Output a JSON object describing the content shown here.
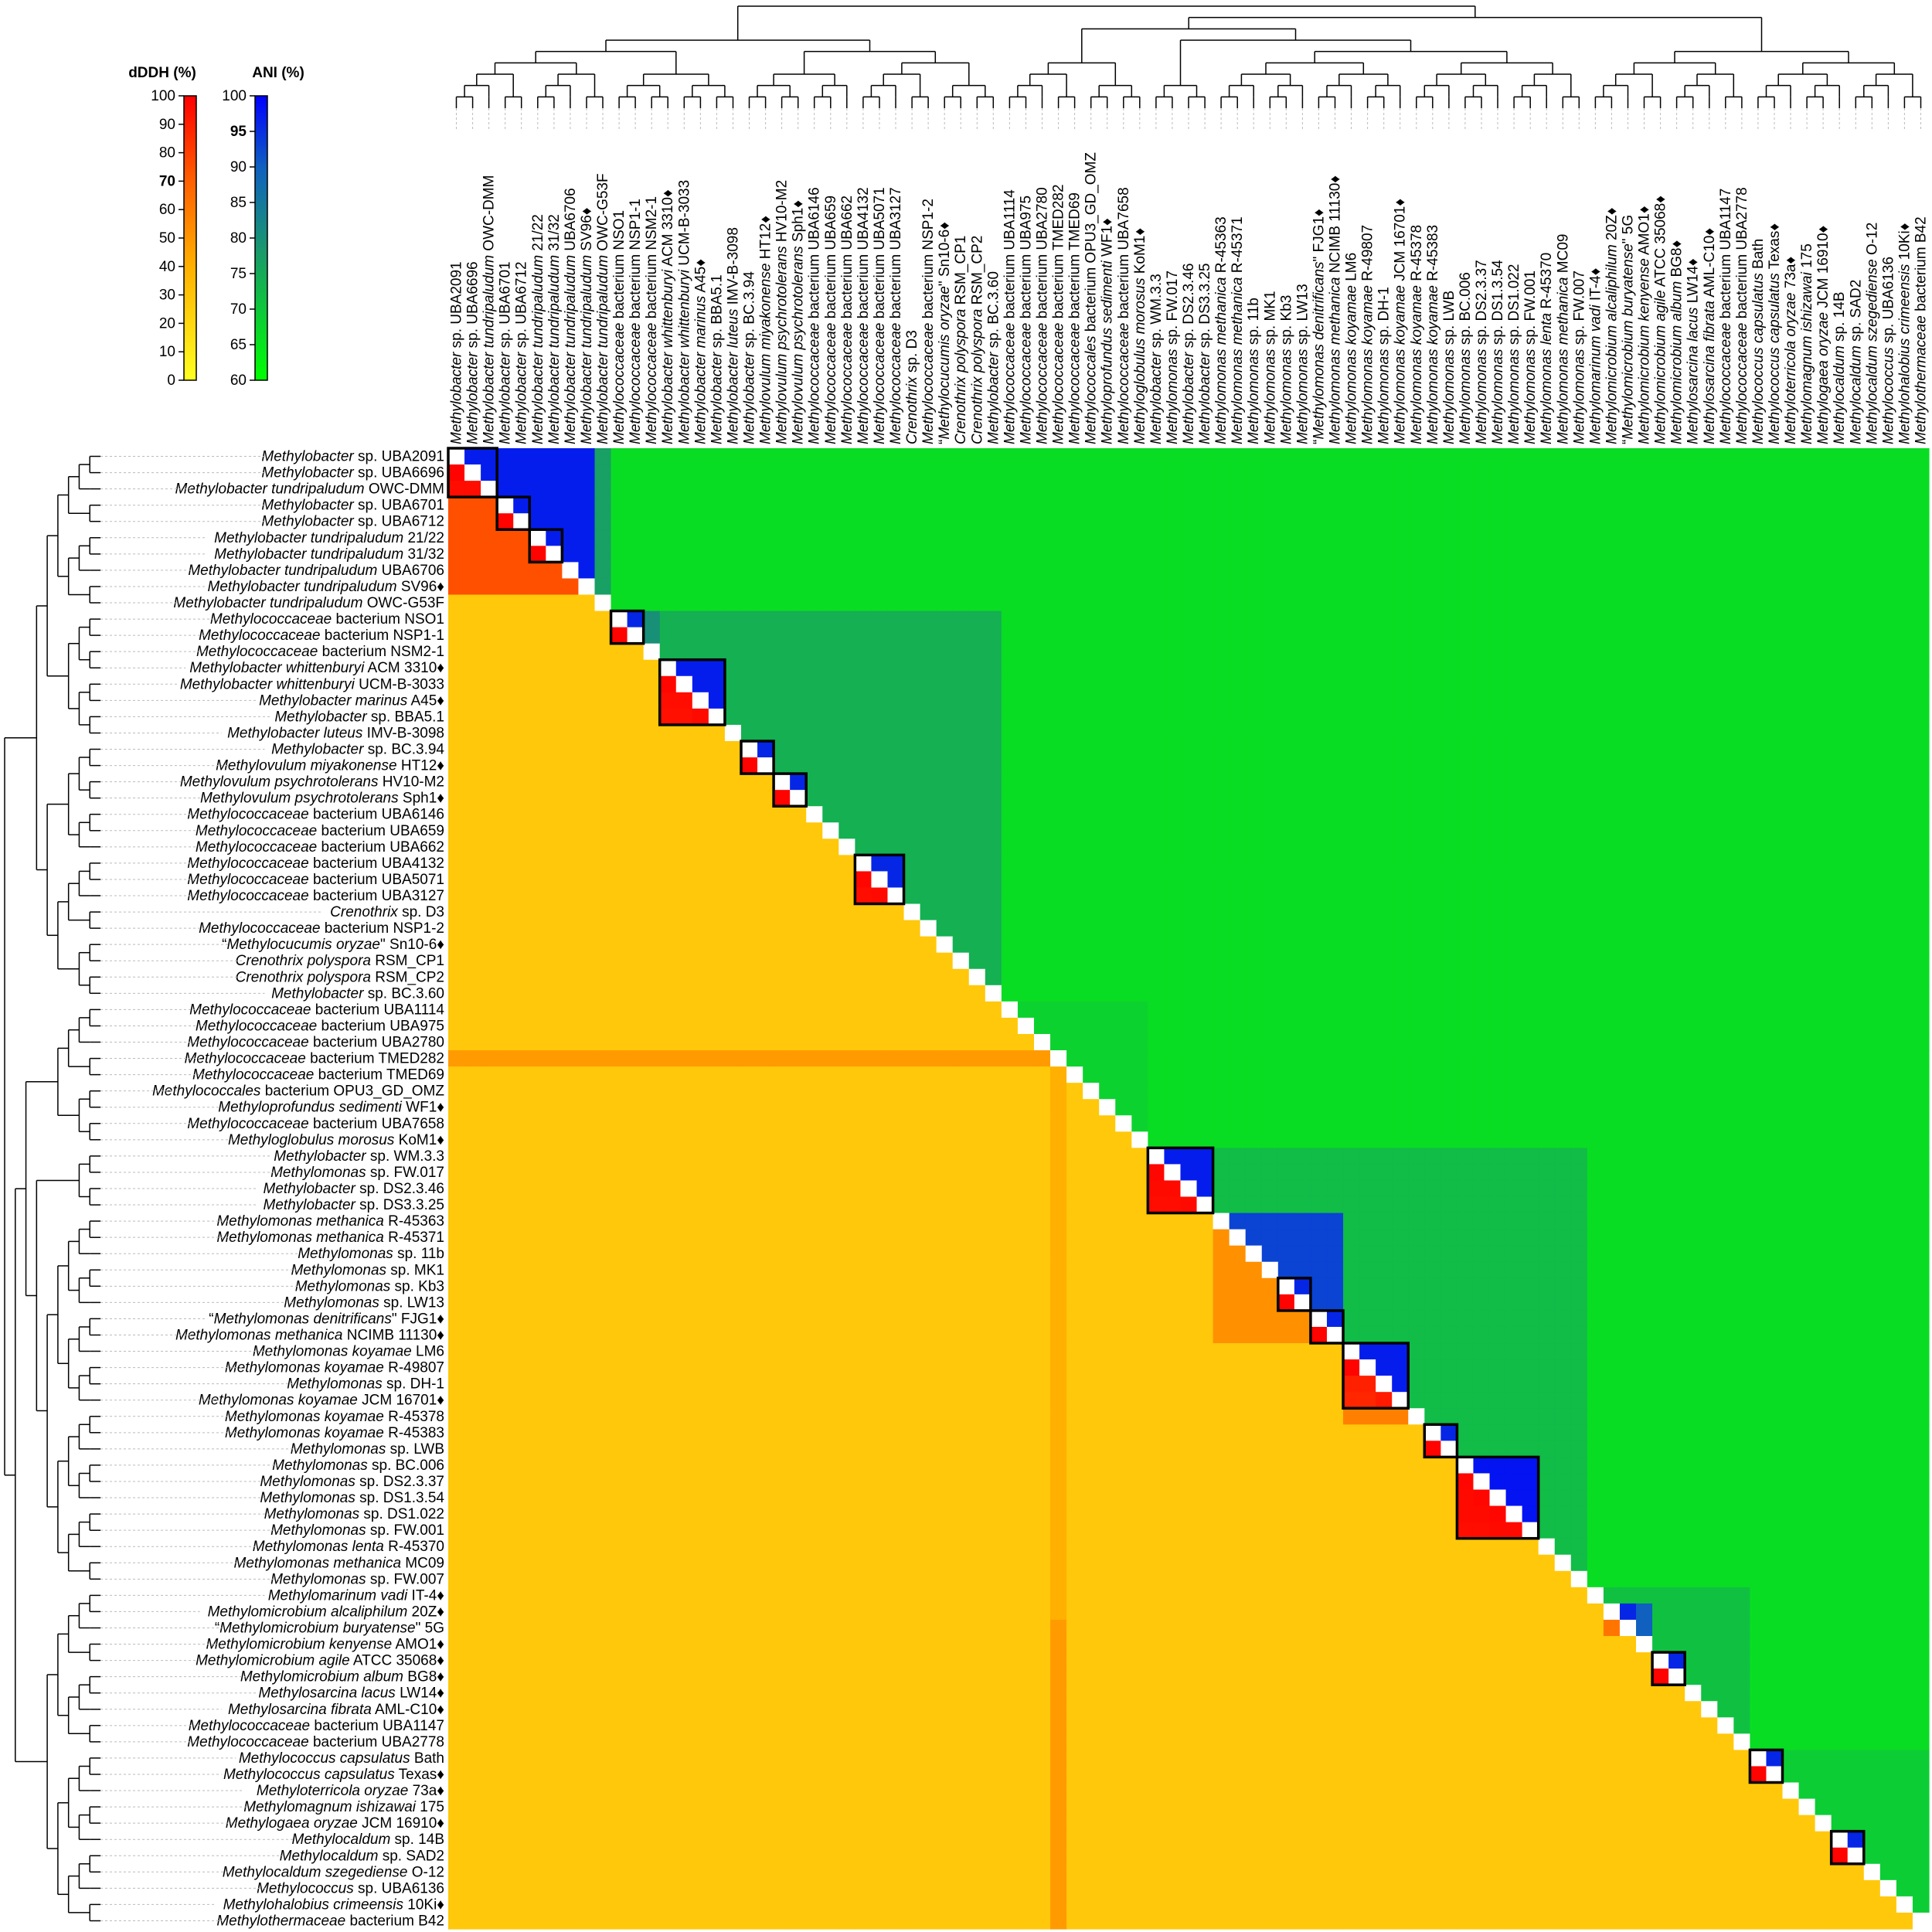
{
  "chart_data": {
    "type": "heatmap",
    "description_lower_triangle": "dDDH (%)",
    "description_upper_triangle": "ANI (%)",
    "colorbars": [
      {
        "title": "dDDH (%)",
        "min": 0,
        "max": 100,
        "ticks": [
          "100",
          "90",
          "80",
          "70",
          "60",
          "50",
          "40",
          "30",
          "20",
          "10",
          "0"
        ],
        "bold_tick": "70",
        "colors": [
          "#ffff20",
          "#ffb000",
          "#ff6000",
          "#ff0000"
        ]
      },
      {
        "title": "ANI (%)",
        "min": 60,
        "max": 100,
        "ticks": [
          "100",
          "95",
          "90",
          "85",
          "80",
          "75",
          "70",
          "65",
          "60"
        ],
        "bold_tick": "95",
        "colors": [
          "#00ff00",
          "#1a9a6a",
          "#1060c0",
          "#0000ff"
        ]
      }
    ],
    "taxa": [
      {
        "genus": "Methylobacter",
        "rest": " sp. UBA2091"
      },
      {
        "genus": "Methylobacter",
        "rest": " sp. UBA6696"
      },
      {
        "genus": "Methylobacter tundripaludum",
        "rest": " OWC-DMM"
      },
      {
        "genus": "Methylobacter",
        "rest": " sp. UBA6701"
      },
      {
        "genus": "Methylobacter",
        "rest": " sp. UBA6712"
      },
      {
        "genus": "Methylobacter tundripaludum",
        "rest": " 21/22"
      },
      {
        "genus": "Methylobacter tundripaludum",
        "rest": " 31/32"
      },
      {
        "genus": "Methylobacter tundripaludum",
        "rest": " UBA6706"
      },
      {
        "genus": "Methylobacter tundripaludum",
        "rest": " SV96♦"
      },
      {
        "genus": "Methylobacter tundripaludum",
        "rest": " OWC-G53F"
      },
      {
        "genus": "Methylococcaceae",
        "rest": " bacterium NSO1"
      },
      {
        "genus": "Methylococcaceae",
        "rest": " bacterium NSP1-1"
      },
      {
        "genus": "Methylococcaceae",
        "rest": " bacterium NSM2-1"
      },
      {
        "genus": "Methylobacter whittenburyi",
        "rest": " ACM 3310♦"
      },
      {
        "genus": "Methylobacter whittenburyi",
        "rest": " UCM-B-3033"
      },
      {
        "genus": "Methylobacter marinus",
        "rest": " A45♦"
      },
      {
        "genus": "Methylobacter",
        "rest": " sp. BBA5.1"
      },
      {
        "genus": "Methylobacter luteus",
        "rest": " IMV-B-3098"
      },
      {
        "genus": "Methylobacter",
        "rest": " sp. BC.3.94"
      },
      {
        "genus": "Methylovulum miyakonense",
        "rest": " HT12♦"
      },
      {
        "genus": "Methylovulum psychrotolerans",
        "rest": " HV10-M2"
      },
      {
        "genus": "Methylovulum psychrotolerans",
        "rest": " Sph1♦"
      },
      {
        "genus": "Methylococcaceae",
        "rest": " bacterium UBA6146"
      },
      {
        "genus": "Methylococcaceae",
        "rest": " bacterium UBA659"
      },
      {
        "genus": "Methylococcaceae",
        "rest": " bacterium UBA662"
      },
      {
        "genus": "Methylococcaceae",
        "rest": " bacterium UBA4132"
      },
      {
        "genus": "Methylococcaceae",
        "rest": " bacterium UBA5071"
      },
      {
        "genus": "Methylococcaceae",
        "rest": " bacterium UBA3127"
      },
      {
        "genus": "Crenothrix",
        "rest": " sp. D3"
      },
      {
        "genus": "Methylococcaceae",
        "rest": " bacterium NSP1-2"
      },
      {
        "genus": "Methylocucumis oryzae",
        "rest": "\" Sn10-6♦",
        "pre": "“"
      },
      {
        "genus": "Crenothrix polyspora",
        "rest": " RSM_CP1"
      },
      {
        "genus": "Crenothrix polyspora",
        "rest": " RSM_CP2"
      },
      {
        "genus": "Methylobacter",
        "rest": " sp. BC.3.60"
      },
      {
        "genus": "Methylococcaceae",
        "rest": " bacterium UBA1114"
      },
      {
        "genus": "Methylococcaceae",
        "rest": " bacterium UBA975"
      },
      {
        "genus": "Methylococcaceae",
        "rest": " bacterium UBA2780"
      },
      {
        "genus": "Methylococcaceae",
        "rest": " bacterium TMED282"
      },
      {
        "genus": "Methylococcaceae",
        "rest": " bacterium TMED69"
      },
      {
        "genus": "Methylococcales",
        "rest": " bacterium OPU3_GD_OMZ"
      },
      {
        "genus": "Methyloprofundus sedimenti",
        "rest": " WF1♦"
      },
      {
        "genus": "Methylococcaceae",
        "rest": " bacterium UBA7658"
      },
      {
        "genus": "Methyloglobulus morosus",
        "rest": " KoM1♦"
      },
      {
        "genus": "Methylobacter",
        "rest": " sp. WM.3.3"
      },
      {
        "genus": "Methylomonas",
        "rest": " sp. FW.017"
      },
      {
        "genus": "Methylobacter",
        "rest": " sp. DS2.3.46"
      },
      {
        "genus": "Methylobacter",
        "rest": " sp. DS3.3.25"
      },
      {
        "genus": "Methylomonas methanica",
        "rest": " R-45363"
      },
      {
        "genus": "Methylomonas methanica",
        "rest": " R-45371"
      },
      {
        "genus": "Methylomonas",
        "rest": " sp. 11b"
      },
      {
        "genus": "Methylomonas",
        "rest": " sp. MK1"
      },
      {
        "genus": "Methylomonas",
        "rest": " sp. Kb3"
      },
      {
        "genus": "Methylomonas",
        "rest": " sp. LW13"
      },
      {
        "genus": "Methylomonas denitrificans",
        "rest": "\" FJG1♦",
        "pre": "“"
      },
      {
        "genus": "Methylomonas methanica",
        "rest": " NCIMB 11130♦"
      },
      {
        "genus": "Methylomonas koyamae",
        "rest": " LM6"
      },
      {
        "genus": "Methylomonas koyamae",
        "rest": " R-49807"
      },
      {
        "genus": "Methylomonas",
        "rest": " sp. DH-1"
      },
      {
        "genus": "Methylomonas koyamae",
        "rest": " JCM 16701♦"
      },
      {
        "genus": "Methylomonas koyamae",
        "rest": " R-45378"
      },
      {
        "genus": "Methylomonas koyamae",
        "rest": " R-45383"
      },
      {
        "genus": "Methylomonas",
        "rest": " sp. LWB"
      },
      {
        "genus": "Methylomonas",
        "rest": " sp. BC.006"
      },
      {
        "genus": "Methylomonas",
        "rest": " sp. DS2.3.37"
      },
      {
        "genus": "Methylomonas",
        "rest": " sp. DS1.3.54"
      },
      {
        "genus": "Methylomonas",
        "rest": " sp. DS1.022"
      },
      {
        "genus": "Methylomonas",
        "rest": " sp. FW.001"
      },
      {
        "genus": "Methylomonas lenta",
        "rest": " R-45370"
      },
      {
        "genus": "Methylomonas methanica",
        "rest": " MC09"
      },
      {
        "genus": "Methylomonas",
        "rest": " sp. FW.007"
      },
      {
        "genus": "Methylomarinum vadi",
        "rest": " IT-4♦"
      },
      {
        "genus": "Methylomicrobium alcaliphilum",
        "rest": " 20Z♦"
      },
      {
        "genus": "Methylomicrobium buryatense",
        "rest": "\" 5G",
        "pre": "“"
      },
      {
        "genus": "Methylomicrobium kenyense",
        "rest": " AMO1♦"
      },
      {
        "genus": "Methylomicrobium agile",
        "rest": " ATCC 35068♦"
      },
      {
        "genus": "Methylomicrobium album",
        "rest": " BG8♦"
      },
      {
        "genus": "Methylosarcina lacus",
        "rest": " LW14♦"
      },
      {
        "genus": "Methylosarcina fibrata",
        "rest": " AML-C10♦"
      },
      {
        "genus": "Methylococcaceae",
        "rest": " bacterium UBA1147"
      },
      {
        "genus": "Methylococcaceae",
        "rest": " bacterium UBA2778"
      },
      {
        "genus": "Methylococcus capsulatus",
        "rest": " Bath"
      },
      {
        "genus": "Methylococcus capsulatus",
        "rest": " Texas♦"
      },
      {
        "genus": "Methyloterricola oryzae",
        "rest": " 73a♦"
      },
      {
        "genus": "Methylomagnum ishizawai",
        "rest": " 175"
      },
      {
        "genus": "Methylogaea oryzae",
        "rest": " JCM 16910♦"
      },
      {
        "genus": "Methylocaldum",
        "rest": " sp. 14B"
      },
      {
        "genus": "Methylocaldum",
        "rest": " sp. SAD2"
      },
      {
        "genus": "Methylocaldum szegediense",
        "rest": " O-12"
      },
      {
        "genus": "Methylococcus",
        "rest": " sp. UBA6136"
      },
      {
        "genus": "Methylohalobius crimeensis",
        "rest": " 10Ki♦"
      },
      {
        "genus": "Methylothermaceae",
        "rest": " bacterium B42"
      }
    ],
    "species_clusters": [
      {
        "start": 0,
        "end": 2
      },
      {
        "start": 3,
        "end": 4
      },
      {
        "start": 5,
        "end": 6
      },
      {
        "start": 10,
        "end": 11
      },
      {
        "start": 13,
        "end": 16
      },
      {
        "start": 18,
        "end": 19
      },
      {
        "start": 20,
        "end": 21
      },
      {
        "start": 25,
        "end": 27
      },
      {
        "start": 43,
        "end": 46
      },
      {
        "start": 51,
        "end": 52
      },
      {
        "start": 53,
        "end": 54
      },
      {
        "start": 55,
        "end": 58
      },
      {
        "start": 60,
        "end": 61
      },
      {
        "start": 62,
        "end": 66
      },
      {
        "start": 74,
        "end": 75
      },
      {
        "start": 80,
        "end": 81
      },
      {
        "start": 85,
        "end": 86
      }
    ],
    "ani_blocks": [
      {
        "from": 0,
        "to": 8,
        "ani": 97
      },
      {
        "from": 9,
        "to": 9,
        "ani": 82
      },
      {
        "from": 10,
        "to": 12,
        "ani": 80
      },
      {
        "from": 13,
        "to": 16,
        "ani": 97
      },
      {
        "from": 18,
        "to": 19,
        "ani": 96
      },
      {
        "from": 20,
        "to": 21,
        "ani": 96
      },
      {
        "from": 25,
        "to": 27,
        "ani": 96
      },
      {
        "from": 43,
        "to": 46,
        "ani": 97
      },
      {
        "from": 47,
        "to": 54,
        "ani": 93
      },
      {
        "from": 55,
        "to": 58,
        "ani": 97
      },
      {
        "from": 59,
        "to": 59,
        "ani": 95
      },
      {
        "from": 60,
        "to": 61,
        "ani": 96
      },
      {
        "from": 62,
        "to": 66,
        "ani": 98
      },
      {
        "from": 71,
        "to": 73,
        "ani": 90
      },
      {
        "from": 74,
        "to": 75,
        "ani": 95
      },
      {
        "from": 80,
        "to": 81,
        "ani": 96
      },
      {
        "from": 85,
        "to": 86,
        "ani": 95
      }
    ],
    "ani_groups": [
      {
        "from": 0,
        "to": 9,
        "ani": 77
      },
      {
        "from": 10,
        "to": 33,
        "ani": 74
      },
      {
        "from": 34,
        "to": 42,
        "ani": 68
      },
      {
        "from": 43,
        "to": 69,
        "ani": 72
      },
      {
        "from": 70,
        "to": 79,
        "ani": 71
      },
      {
        "from": 80,
        "to": 90,
        "ani": 69
      }
    ],
    "ani_background": 66,
    "dddh_blocks": [
      {
        "from": 0,
        "to": 8,
        "dddh": 75
      },
      {
        "from": 47,
        "to": 54,
        "dddh": 52
      },
      {
        "from": 55,
        "to": 59,
        "dddh": 58
      }
    ],
    "dddh_pairs": [
      {
        "a": 0,
        "b": 1,
        "dddh": 99
      },
      {
        "a": 0,
        "b": 2,
        "dddh": 96
      },
      {
        "a": 1,
        "b": 2,
        "dddh": 96
      },
      {
        "a": 3,
        "b": 4,
        "dddh": 99
      },
      {
        "a": 5,
        "b": 6,
        "dddh": 99
      },
      {
        "a": 10,
        "b": 11,
        "dddh": 99
      },
      {
        "a": 13,
        "b": 14,
        "dddh": 98
      },
      {
        "a": 13,
        "b": 15,
        "dddh": 96
      },
      {
        "a": 13,
        "b": 16,
        "dddh": 95
      },
      {
        "a": 14,
        "b": 15,
        "dddh": 96
      },
      {
        "a": 14,
        "b": 16,
        "dddh": 95
      },
      {
        "a": 15,
        "b": 16,
        "dddh": 97
      },
      {
        "a": 18,
        "b": 19,
        "dddh": 99
      },
      {
        "a": 20,
        "b": 21,
        "dddh": 99
      },
      {
        "a": 25,
        "b": 26,
        "dddh": 98
      },
      {
        "a": 25,
        "b": 27,
        "dddh": 96
      },
      {
        "a": 26,
        "b": 27,
        "dddh": 97
      },
      {
        "a": 43,
        "b": 44,
        "dddh": 98
      },
      {
        "a": 43,
        "b": 45,
        "dddh": 97
      },
      {
        "a": 43,
        "b": 46,
        "dddh": 96
      },
      {
        "a": 44,
        "b": 45,
        "dddh": 97
      },
      {
        "a": 44,
        "b": 46,
        "dddh": 96
      },
      {
        "a": 45,
        "b": 46,
        "dddh": 97
      },
      {
        "a": 51,
        "b": 52,
        "dddh": 99
      },
      {
        "a": 53,
        "b": 54,
        "dddh": 99
      },
      {
        "a": 55,
        "b": 56,
        "dddh": 99
      },
      {
        "a": 55,
        "b": 57,
        "dddh": 90
      },
      {
        "a": 55,
        "b": 58,
        "dddh": 88
      },
      {
        "a": 56,
        "b": 57,
        "dddh": 90
      },
      {
        "a": 56,
        "b": 58,
        "dddh": 88
      },
      {
        "a": 57,
        "b": 58,
        "dddh": 92
      },
      {
        "a": 60,
        "b": 61,
        "dddh": 99
      },
      {
        "a": 62,
        "b": 63,
        "dddh": 98
      },
      {
        "a": 62,
        "b": 64,
        "dddh": 97
      },
      {
        "a": 62,
        "b": 65,
        "dddh": 97
      },
      {
        "a": 62,
        "b": 66,
        "dddh": 96
      },
      {
        "a": 63,
        "b": 64,
        "dddh": 98
      },
      {
        "a": 63,
        "b": 65,
        "dddh": 97
      },
      {
        "a": 63,
        "b": 66,
        "dddh": 96
      },
      {
        "a": 64,
        "b": 65,
        "dddh": 98
      },
      {
        "a": 64,
        "b": 66,
        "dddh": 97
      },
      {
        "a": 65,
        "b": 66,
        "dddh": 97
      },
      {
        "a": 71,
        "b": 72,
        "dddh": 62
      },
      {
        "a": 74,
        "b": 75,
        "dddh": 99
      },
      {
        "a": 80,
        "b": 81,
        "dddh": 99
      },
      {
        "a": 85,
        "b": 86,
        "dddh": 99
      }
    ],
    "dddh_background": 28,
    "dddh_hot_rows": [
      {
        "row": 37,
        "dddh": 48
      }
    ],
    "dddh_hot_columns": [
      {
        "col": 37,
        "from": 38,
        "to": 71,
        "dddh": 40
      }
    ]
  }
}
